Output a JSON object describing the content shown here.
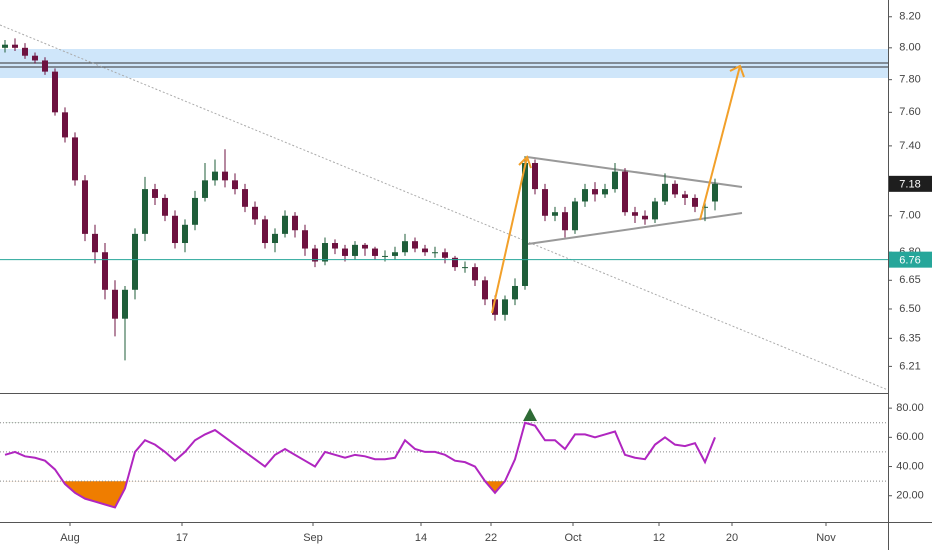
{
  "chart_data": {
    "type": "candlestick",
    "x": [
      0,
      1,
      2,
      3,
      4,
      5,
      6,
      7,
      8,
      9,
      10,
      11,
      12,
      13,
      14,
      15,
      16,
      17,
      18,
      19,
      20,
      21,
      22,
      23,
      24,
      25,
      26,
      27,
      28,
      29,
      30,
      31,
      32,
      33,
      34,
      35,
      36,
      37,
      38,
      39,
      40,
      41,
      42,
      43,
      44,
      45,
      46,
      47,
      48,
      49,
      50,
      51,
      52,
      53,
      54,
      55,
      56,
      57,
      58,
      59,
      60,
      61,
      62,
      63,
      64,
      65,
      66,
      67,
      68,
      69,
      70,
      71
    ],
    "open": [
      8.0,
      8.02,
      8.0,
      7.95,
      7.92,
      7.85,
      7.6,
      7.45,
      7.2,
      6.9,
      6.8,
      6.6,
      6.45,
      6.6,
      6.9,
      7.15,
      7.1,
      7.0,
      6.85,
      6.95,
      7.1,
      7.2,
      7.25,
      7.2,
      7.15,
      7.05,
      6.98,
      6.85,
      6.9,
      7.0,
      6.92,
      6.82,
      6.75,
      6.85,
      6.82,
      6.78,
      6.84,
      6.82,
      6.78,
      6.78,
      6.8,
      6.86,
      6.82,
      6.8,
      6.8,
      6.77,
      6.72,
      6.72,
      6.65,
      6.55,
      6.47,
      6.55,
      6.62,
      7.3,
      7.15,
      7.0,
      7.02,
      6.92,
      7.08,
      7.15,
      7.12,
      7.15,
      7.25,
      7.02,
      7.0,
      6.98,
      7.08,
      7.18,
      7.12,
      7.1,
      7.05,
      7.08
    ],
    "high": [
      8.05,
      8.06,
      8.03,
      7.97,
      7.94,
      7.87,
      7.63,
      7.48,
      7.23,
      6.95,
      6.85,
      6.65,
      6.62,
      6.93,
      7.22,
      7.18,
      7.12,
      7.03,
      6.98,
      7.14,
      7.3,
      7.32,
      7.38,
      7.24,
      7.18,
      7.08,
      7.0,
      6.93,
      7.03,
      7.02,
      6.95,
      6.84,
      6.88,
      6.87,
      6.84,
      6.86,
      6.85,
      6.83,
      6.81,
      6.83,
      6.9,
      6.88,
      6.84,
      6.83,
      6.82,
      6.78,
      6.75,
      6.74,
      6.67,
      6.57,
      6.57,
      6.66,
      7.34,
      7.32,
      7.18,
      7.05,
      7.05,
      7.1,
      7.18,
      7.19,
      7.18,
      7.3,
      7.27,
      7.05,
      7.03,
      7.1,
      7.24,
      7.2,
      7.14,
      7.12,
      7.08,
      7.21
    ],
    "low": [
      7.97,
      7.98,
      7.93,
      7.9,
      7.83,
      7.58,
      7.42,
      7.17,
      6.86,
      6.74,
      6.55,
      6.36,
      6.24,
      6.55,
      6.86,
      7.06,
      6.97,
      6.82,
      6.8,
      6.92,
      7.08,
      7.17,
      7.16,
      7.12,
      7.02,
      6.95,
      6.82,
      6.8,
      6.88,
      6.88,
      6.78,
      6.72,
      6.73,
      6.79,
      6.75,
      6.76,
      6.78,
      6.76,
      6.75,
      6.76,
      6.78,
      6.8,
      6.78,
      6.77,
      6.74,
      6.7,
      6.69,
      6.62,
      6.52,
      6.44,
      6.44,
      6.52,
      6.6,
      7.12,
      6.97,
      6.97,
      6.88,
      6.9,
      7.05,
      7.08,
      7.1,
      7.13,
      7.0,
      6.96,
      6.95,
      6.96,
      7.06,
      7.1,
      7.06,
      7.02,
      6.97,
      7.03
    ],
    "close": [
      8.02,
      8.0,
      7.95,
      7.92,
      7.85,
      7.6,
      7.45,
      7.2,
      6.9,
      6.8,
      6.6,
      6.45,
      6.6,
      6.9,
      7.15,
      7.1,
      7.0,
      6.85,
      6.95,
      7.1,
      7.2,
      7.25,
      7.2,
      7.15,
      7.05,
      6.98,
      6.85,
      6.9,
      7.0,
      6.92,
      6.82,
      6.75,
      6.85,
      6.82,
      6.78,
      6.84,
      6.82,
      6.78,
      6.78,
      6.8,
      6.86,
      6.82,
      6.8,
      6.8,
      6.77,
      6.72,
      6.72,
      6.65,
      6.55,
      6.47,
      6.55,
      6.62,
      7.3,
      7.15,
      7.0,
      7.02,
      6.92,
      7.08,
      7.15,
      7.12,
      7.15,
      7.25,
      7.02,
      7.0,
      6.98,
      7.08,
      7.18,
      7.12,
      7.1,
      7.05,
      7.05,
      7.18
    ],
    "up_color": "#1f5e3a",
    "down_color": "#6e1240",
    "log_scale": true,
    "xlim": [
      -0.5,
      88.3
    ],
    "ylim": [
      6.08,
      8.31
    ],
    "yticks": [
      {
        "value": 8.2,
        "label": "8.20"
      },
      {
        "value": 8.0,
        "label": "8.00"
      },
      {
        "value": 7.8,
        "label": "7.80"
      },
      {
        "value": 7.6,
        "label": "7.60"
      },
      {
        "value": 7.4,
        "label": "7.40"
      },
      {
        "value": 7.0,
        "label": "7.00"
      },
      {
        "value": 6.8,
        "label": "6.80"
      },
      {
        "value": 6.65,
        "label": "6.65"
      },
      {
        "value": 6.5,
        "label": "6.50"
      },
      {
        "value": 6.35,
        "label": "6.35"
      },
      {
        "value": 6.21,
        "label": "6.21"
      }
    ],
    "xticks": [
      {
        "value": 6.5,
        "label": "Aug"
      },
      {
        "value": 17.7,
        "label": "17"
      },
      {
        "value": 30.8,
        "label": "Sep"
      },
      {
        "value": 41.6,
        "label": "14"
      },
      {
        "value": 48.6,
        "label": "22"
      },
      {
        "value": 56.8,
        "label": "Oct"
      },
      {
        "value": 65.4,
        "label": "12"
      },
      {
        "value": 72.7,
        "label": "20"
      },
      {
        "value": 82.1,
        "label": "Nov"
      }
    ],
    "price_badges": [
      {
        "value": 7.18,
        "color": "#1e1e1e",
        "line": false
      },
      {
        "value": 6.76,
        "color": "#26a69a",
        "line": true
      }
    ],
    "rsi": {
      "type": "line",
      "values": [
        48,
        50,
        47,
        46,
        44,
        38,
        28,
        22,
        18,
        16,
        14,
        12,
        25,
        50,
        58,
        55,
        50,
        44,
        50,
        58,
        62,
        65,
        60,
        55,
        50,
        45,
        40,
        48,
        52,
        48,
        44,
        40,
        50,
        48,
        46,
        48,
        47,
        45,
        45,
        46,
        58,
        52,
        50,
        50,
        48,
        44,
        43,
        40,
        30,
        22,
        30,
        45,
        70,
        68,
        58,
        58,
        52,
        62,
        62,
        60,
        62,
        64,
        48,
        46,
        45,
        55,
        60,
        55,
        54,
        56,
        43,
        60
      ],
      "color": "#b026c0",
      "ylim": [
        2,
        89
      ],
      "yticks": [
        {
          "value": 80,
          "label": "80.00"
        },
        {
          "value": 60,
          "label": "60.00"
        },
        {
          "value": 40,
          "label": "40.00"
        },
        {
          "value": 20,
          "label": "20.00"
        }
      ],
      "levels": [
        70,
        50,
        30
      ],
      "overbought_color": "#2e7d32",
      "oversold_color": "#ef7d00"
    }
  }
}
